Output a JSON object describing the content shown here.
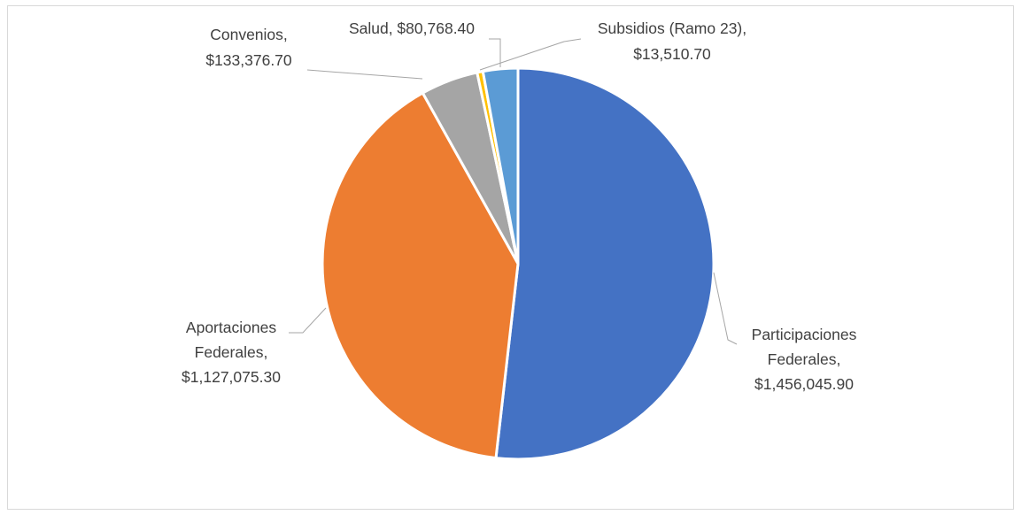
{
  "chart_data": {
    "type": "pie",
    "title": "",
    "categories": [
      "Participaciones Federales",
      "Aportaciones Federales",
      "Convenios",
      "Subsidios (Ramo 23)",
      "Salud"
    ],
    "values": [
      1456045.9,
      1127075.3,
      133376.7,
      13510.7,
      80768.4
    ],
    "colors": [
      "#4472c4",
      "#ed7d31",
      "#a5a5a5",
      "#ffc000",
      "#5b9bd5"
    ],
    "data_labels": [
      [
        "Participaciones",
        "Federales,",
        "$1,456,045.90"
      ],
      [
        "Aportaciones",
        "Federales,",
        "$1,127,075.30"
      ],
      [
        "Convenios,",
        "$133,376.70"
      ],
      [
        "Subsidios (Ramo 23),",
        "$13,510.70"
      ],
      [
        "Salud, $80,768.40"
      ]
    ],
    "legend": "none"
  }
}
